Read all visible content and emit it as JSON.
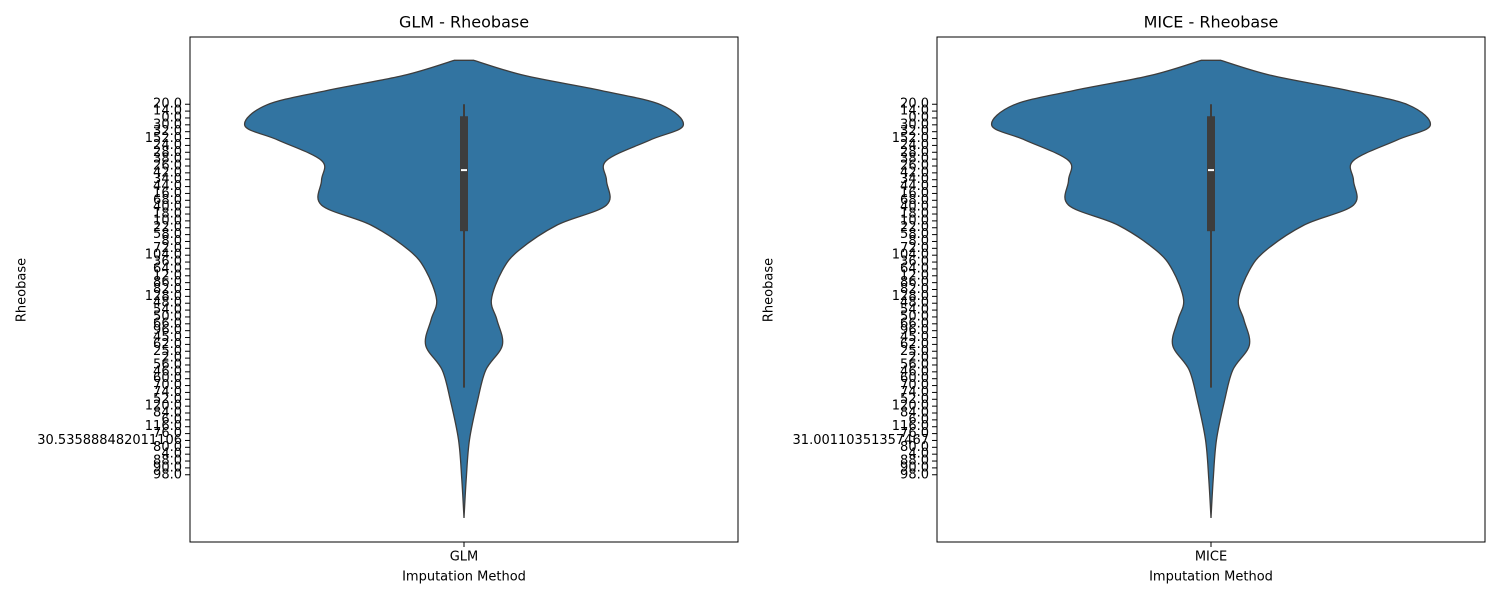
{
  "chart_data": [
    {
      "type": "violin",
      "title": "GLM - Rheobase",
      "xlabel": "Imputation Method",
      "ylabel": "Rheobase",
      "categories": [
        "GLM"
      ],
      "color": "#3274a1",
      "xlim": [
        -0.5,
        0.5
      ],
      "ylim": [
        63.8,
        -9.8
      ],
      "yticks": [
        {
          "value": 0,
          "label": "20.0"
        },
        {
          "value": 1,
          "label": "14.0"
        },
        {
          "value": 2,
          "label": "0.0"
        },
        {
          "value": 3,
          "label": "30.0"
        },
        {
          "value": 4,
          "label": "32.0"
        },
        {
          "value": 5,
          "label": "152.0"
        },
        {
          "value": 6,
          "label": "24.0"
        },
        {
          "value": 7,
          "label": "28.0"
        },
        {
          "value": 8,
          "label": "38.0"
        },
        {
          "value": 9,
          "label": "26.0"
        },
        {
          "value": 10,
          "label": "42.0"
        },
        {
          "value": 11,
          "label": "34.0"
        },
        {
          "value": 12,
          "label": "44.0"
        },
        {
          "value": 13,
          "label": "16.0"
        },
        {
          "value": 14,
          "label": "68.0"
        },
        {
          "value": 15,
          "label": "40.0"
        },
        {
          "value": 16,
          "label": "18.0"
        },
        {
          "value": 17,
          "label": "10.0"
        },
        {
          "value": 18,
          "label": "22.0"
        },
        {
          "value": 19,
          "label": "58.0"
        },
        {
          "value": 20,
          "label": "8.0"
        },
        {
          "value": 21,
          "label": "72.0"
        },
        {
          "value": 22,
          "label": "104.0"
        },
        {
          "value": 23,
          "label": "36.0"
        },
        {
          "value": 24,
          "label": "64.0"
        },
        {
          "value": 25,
          "label": "12.0"
        },
        {
          "value": 26,
          "label": "86.0"
        },
        {
          "value": 27,
          "label": "82.0"
        },
        {
          "value": 28,
          "label": "128.0"
        },
        {
          "value": 29,
          "label": "48.0"
        },
        {
          "value": 30,
          "label": "54.0"
        },
        {
          "value": 31,
          "label": "50.0"
        },
        {
          "value": 32,
          "label": "66.0"
        },
        {
          "value": 33,
          "label": "96.0"
        },
        {
          "value": 34,
          "label": "45.0"
        },
        {
          "value": 35,
          "label": "62.0"
        },
        {
          "value": 36,
          "label": "25.0"
        },
        {
          "value": 37,
          "label": "2.0"
        },
        {
          "value": 38,
          "label": "56.0"
        },
        {
          "value": 39,
          "label": "46.0"
        },
        {
          "value": 40,
          "label": "60.0"
        },
        {
          "value": 41,
          "label": "70.0"
        },
        {
          "value": 42,
          "label": "74.0"
        },
        {
          "value": 43,
          "label": "52.0"
        },
        {
          "value": 44,
          "label": "120.0"
        },
        {
          "value": 45,
          "label": "84.0"
        },
        {
          "value": 46,
          "label": "6.0"
        },
        {
          "value": 47,
          "label": "116.0"
        },
        {
          "value": 48,
          "label": "76.0"
        },
        {
          "value": 49,
          "label": "30.535888482011106"
        },
        {
          "value": 50,
          "label": "80.0"
        },
        {
          "value": 51,
          "label": "4.0"
        },
        {
          "value": 52,
          "label": "88.0"
        },
        {
          "value": 53,
          "label": "90.0"
        },
        {
          "value": 54,
          "label": "98.0"
        }
      ],
      "violin": {
        "y": [
          -6.4,
          -4.2,
          -2.0,
          0.1,
          3.1,
          5.2,
          8.2,
          11.1,
          14.7,
          17.6,
          21.3,
          24.2,
          28.5,
          31.4,
          35.1,
          38.7,
          43.1,
          48.9,
          54.7,
          60.3
        ],
        "half_width": [
          0.018,
          0.11,
          0.25,
          0.36,
          0.4,
          0.34,
          0.26,
          0.26,
          0.26,
          0.17,
          0.1,
          0.07,
          0.05,
          0.06,
          0.07,
          0.04,
          0.025,
          0.01,
          0.004,
          0
        ]
      },
      "box": {
        "whisker_low": 0,
        "q1": 1.75,
        "median": 9.6,
        "q3": 18.5,
        "whisker_high": 41.3
      }
    },
    {
      "type": "violin",
      "title": "MICE - Rheobase",
      "xlabel": "Imputation Method",
      "ylabel": "Rheobase",
      "categories": [
        "MICE"
      ],
      "color": "#3274a1",
      "xlim": [
        -0.5,
        0.5
      ],
      "ylim": [
        63.8,
        -9.8
      ],
      "yticks": [
        {
          "value": 0,
          "label": "20.0"
        },
        {
          "value": 1,
          "label": "14.0"
        },
        {
          "value": 2,
          "label": "0.0"
        },
        {
          "value": 3,
          "label": "30.0"
        },
        {
          "value": 4,
          "label": "32.0"
        },
        {
          "value": 5,
          "label": "152.0"
        },
        {
          "value": 6,
          "label": "24.0"
        },
        {
          "value": 7,
          "label": "28.0"
        },
        {
          "value": 8,
          "label": "38.0"
        },
        {
          "value": 9,
          "label": "26.0"
        },
        {
          "value": 10,
          "label": "42.0"
        },
        {
          "value": 11,
          "label": "34.0"
        },
        {
          "value": 12,
          "label": "44.0"
        },
        {
          "value": 13,
          "label": "16.0"
        },
        {
          "value": 14,
          "label": "68.0"
        },
        {
          "value": 15,
          "label": "40.0"
        },
        {
          "value": 16,
          "label": "18.0"
        },
        {
          "value": 17,
          "label": "10.0"
        },
        {
          "value": 18,
          "label": "22.0"
        },
        {
          "value": 19,
          "label": "58.0"
        },
        {
          "value": 20,
          "label": "8.0"
        },
        {
          "value": 21,
          "label": "72.0"
        },
        {
          "value": 22,
          "label": "104.0"
        },
        {
          "value": 23,
          "label": "36.0"
        },
        {
          "value": 24,
          "label": "64.0"
        },
        {
          "value": 25,
          "label": "12.0"
        },
        {
          "value": 26,
          "label": "86.0"
        },
        {
          "value": 27,
          "label": "82.0"
        },
        {
          "value": 28,
          "label": "128.0"
        },
        {
          "value": 29,
          "label": "48.0"
        },
        {
          "value": 30,
          "label": "54.0"
        },
        {
          "value": 31,
          "label": "50.0"
        },
        {
          "value": 32,
          "label": "66.0"
        },
        {
          "value": 33,
          "label": "96.0"
        },
        {
          "value": 34,
          "label": "45.0"
        },
        {
          "value": 35,
          "label": "62.0"
        },
        {
          "value": 36,
          "label": "25.0"
        },
        {
          "value": 37,
          "label": "2.0"
        },
        {
          "value": 38,
          "label": "56.0"
        },
        {
          "value": 39,
          "label": "46.0"
        },
        {
          "value": 40,
          "label": "60.0"
        },
        {
          "value": 41,
          "label": "70.0"
        },
        {
          "value": 42,
          "label": "74.0"
        },
        {
          "value": 43,
          "label": "52.0"
        },
        {
          "value": 44,
          "label": "120.0"
        },
        {
          "value": 45,
          "label": "84.0"
        },
        {
          "value": 46,
          "label": "6.0"
        },
        {
          "value": 47,
          "label": "116.0"
        },
        {
          "value": 48,
          "label": "76.0"
        },
        {
          "value": 49,
          "label": "31.00110351357467"
        },
        {
          "value": 50,
          "label": "80.0"
        },
        {
          "value": 51,
          "label": "4.0"
        },
        {
          "value": 52,
          "label": "88.0"
        },
        {
          "value": 53,
          "label": "90.0"
        },
        {
          "value": 54,
          "label": "98.0"
        }
      ],
      "violin": {
        "y": [
          -6.4,
          -4.2,
          -2.0,
          0.1,
          3.1,
          5.2,
          8.2,
          11.1,
          14.7,
          17.6,
          21.3,
          24.2,
          28.5,
          31.4,
          35.1,
          38.7,
          43.1,
          48.9,
          54.7,
          60.3
        ],
        "half_width": [
          0.018,
          0.11,
          0.25,
          0.36,
          0.4,
          0.34,
          0.26,
          0.26,
          0.26,
          0.17,
          0.1,
          0.07,
          0.05,
          0.06,
          0.07,
          0.04,
          0.025,
          0.01,
          0.004,
          0
        ]
      },
      "box": {
        "whisker_low": 0,
        "q1": 1.75,
        "median": 9.6,
        "q3": 18.5,
        "whisker_high": 41.3
      }
    }
  ]
}
